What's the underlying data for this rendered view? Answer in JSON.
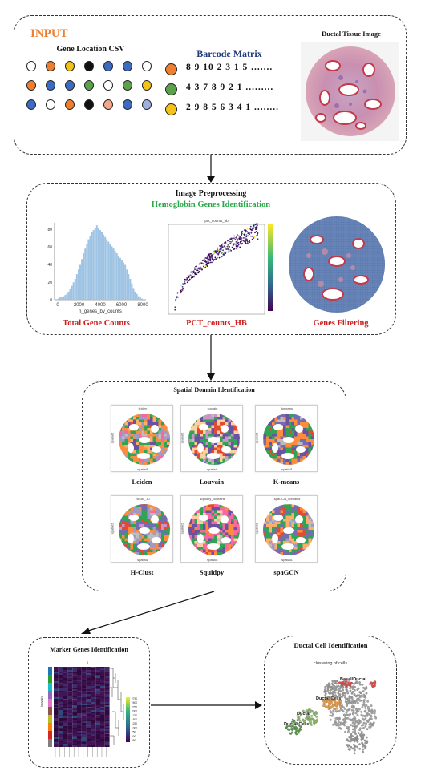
{
  "input": {
    "title": "INPUT",
    "gene_location_title": "Gene Location CSV",
    "barcode_title": "Barcode Matrix",
    "tissue_title": "Ductal Tissue Image",
    "barcode_rows": [
      "8 9 10 2 3 1 5 .......",
      "4 3 7 8 9 2 1 .........",
      "2 9 8 5 6 3 4 1 ........"
    ],
    "barcode_colors": [
      "#ef7f2f",
      "#5aa24a",
      "#f3c11a"
    ],
    "dot_colors": [
      [
        "#ffffff",
        "#ef7f2f",
        "#f3c11a",
        "#111111",
        "#3b6cc2",
        "#3b6cc2",
        "#ffffff"
      ],
      [
        "#ef7f2f",
        "#3b6cc2",
        "#3b6cc2",
        "#5aa24a",
        "#ffffff",
        "#5aa24a",
        "#f3c11a"
      ],
      [
        "#3b6cc2",
        "#ffffff",
        "#ef7f2f",
        "#111111",
        "#f5a58a",
        "#3b6cc2",
        "#9fb0e0"
      ]
    ]
  },
  "preprocessing": {
    "title": "Image Preprocessing",
    "subtitle": "Hemoglobin Genes Identification",
    "hist_caption": "Total Gene Counts",
    "scatter_caption": "PCT_counts_HB",
    "filter_caption": "Genes Filtering",
    "hist_xlabel": "n_genes_by_counts",
    "hist_x_ticks": [
      "0",
      "2000",
      "4000",
      "6000",
      "8000"
    ],
    "hist_y_ticks": [
      "0",
      "20",
      "40",
      "60",
      "80"
    ],
    "scatter_title": "pct_counts_hb"
  },
  "spatial": {
    "title": "Spatial Domain Identification",
    "methods": [
      {
        "label": "Leiden",
        "top": "leiden"
      },
      {
        "label": "Louvain",
        "top": "louvain"
      },
      {
        "label": "K-means",
        "top": "kmeans"
      },
      {
        "label": "H-Clust",
        "top": "hclust_10"
      },
      {
        "label": "Squidpy",
        "top": "squidpy_domains"
      },
      {
        "label": "spaGCN",
        "top": "spaGCN_domains"
      }
    ],
    "axis_x": "spatial1",
    "axis_y": "spatial2"
  },
  "marker": {
    "title": "Marker Genes Identification",
    "colorbar_ticks": [
      "2750",
      "2500",
      "2250",
      "2000",
      "1750",
      "1500",
      "1250",
      "1000",
      "750",
      "500",
      "250"
    ],
    "y_axis_label": "louvain",
    "top_label": "0"
  },
  "ductal": {
    "title": "Ductal Cell Identification",
    "subtitle": "clustering of cells",
    "cluster_labels": [
      "Basal/Ductal",
      "Ductal Cells",
      "Ductal",
      "Ductal Cells"
    ]
  },
  "colors": {
    "input_title": "#ef7f2f",
    "subtitle_green": "#2aa84a",
    "caption_red": "#cc1f1f",
    "barcode_title": "#1f3a7a",
    "hist_bar": "#9ec3e3"
  }
}
